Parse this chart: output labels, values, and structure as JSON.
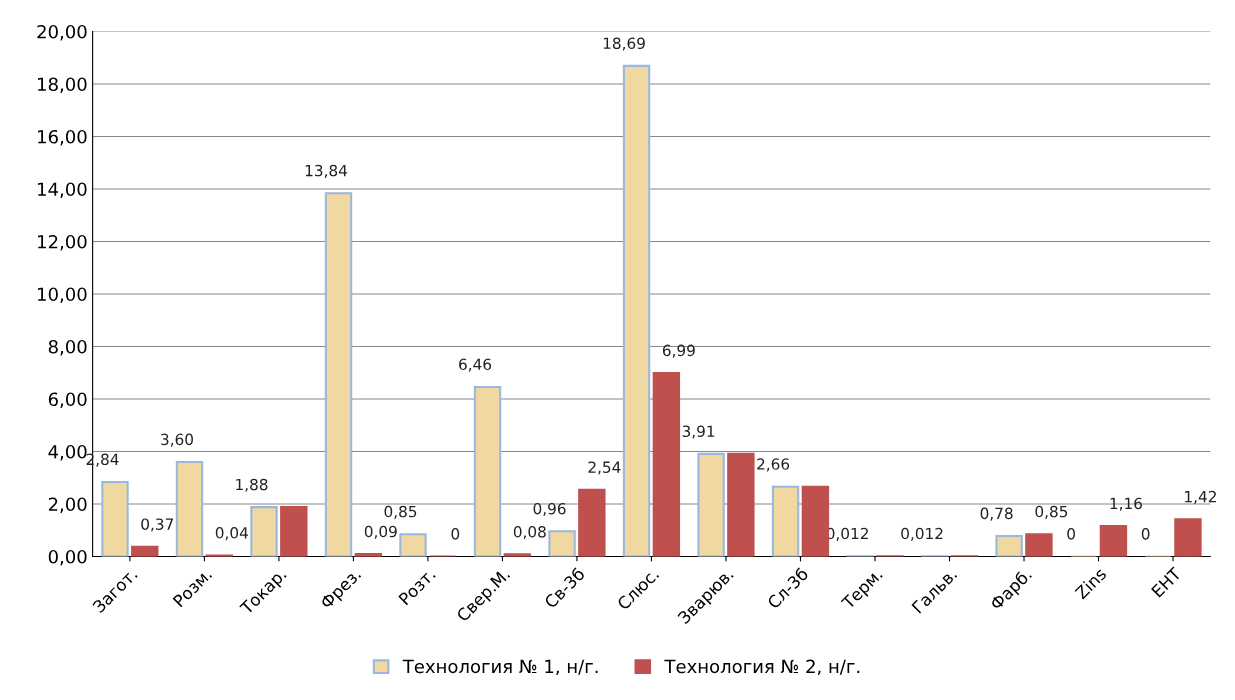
{
  "chart_data": {
    "type": "bar",
    "categories": [
      "Загот.",
      "Розм.",
      "Токар.",
      "Фрез.",
      "Розт.",
      "Свер.М.",
      "Св-3б",
      "Слюс.",
      "Зварюв.",
      "Сл-3б",
      "Терм.",
      "Гальв.",
      "Фарб.",
      "Zins",
      "EHT"
    ],
    "series": [
      {
        "name": "Технология № 1, н/г.",
        "color": "#f0d9a0",
        "values": [
          2.84,
          3.6,
          1.88,
          13.84,
          0.85,
          6.46,
          0.96,
          18.69,
          3.91,
          2.66,
          0.012,
          0.012,
          0.78,
          0,
          0
        ],
        "value_labels": [
          "2,84",
          "3,60",
          "1,88",
          "13,84",
          "0,85",
          "6,46",
          "0,96",
          "18,69",
          "3,91",
          "2,66",
          "0,012",
          "0,012",
          "0,78",
          "0",
          "0"
        ]
      },
      {
        "name": "Технология № 2, н/г.",
        "color": "#c0504d",
        "values": [
          0.37,
          0.04,
          1.88,
          0.09,
          0,
          0.08,
          2.54,
          6.99,
          3.91,
          2.66,
          0.012,
          0.012,
          0.85,
          1.16,
          1.42
        ],
        "value_labels": [
          "0,37",
          "0,04",
          null,
          "0,09",
          "0",
          "0,08",
          "2,54",
          "6,99",
          null,
          null,
          null,
          null,
          "0,85",
          "1,16",
          "1,42"
        ]
      }
    ],
    "ylim": [
      0,
      20
    ],
    "yticks": [
      {
        "value": 0,
        "label": "0,00"
      },
      {
        "value": 2,
        "label": "2,00"
      },
      {
        "value": 4,
        "label": "4,00"
      },
      {
        "value": 6,
        "label": "6,00"
      },
      {
        "value": 8,
        "label": "8,00"
      },
      {
        "value": 10,
        "label": "10,00"
      },
      {
        "value": 12,
        "label": "12,00"
      },
      {
        "value": 14,
        "label": "14,00"
      },
      {
        "value": 16,
        "label": "16,00"
      },
      {
        "value": 18,
        "label": "18,00"
      },
      {
        "value": 20,
        "label": "20,00"
      }
    ],
    "grid": "y",
    "legend": "bottom"
  }
}
